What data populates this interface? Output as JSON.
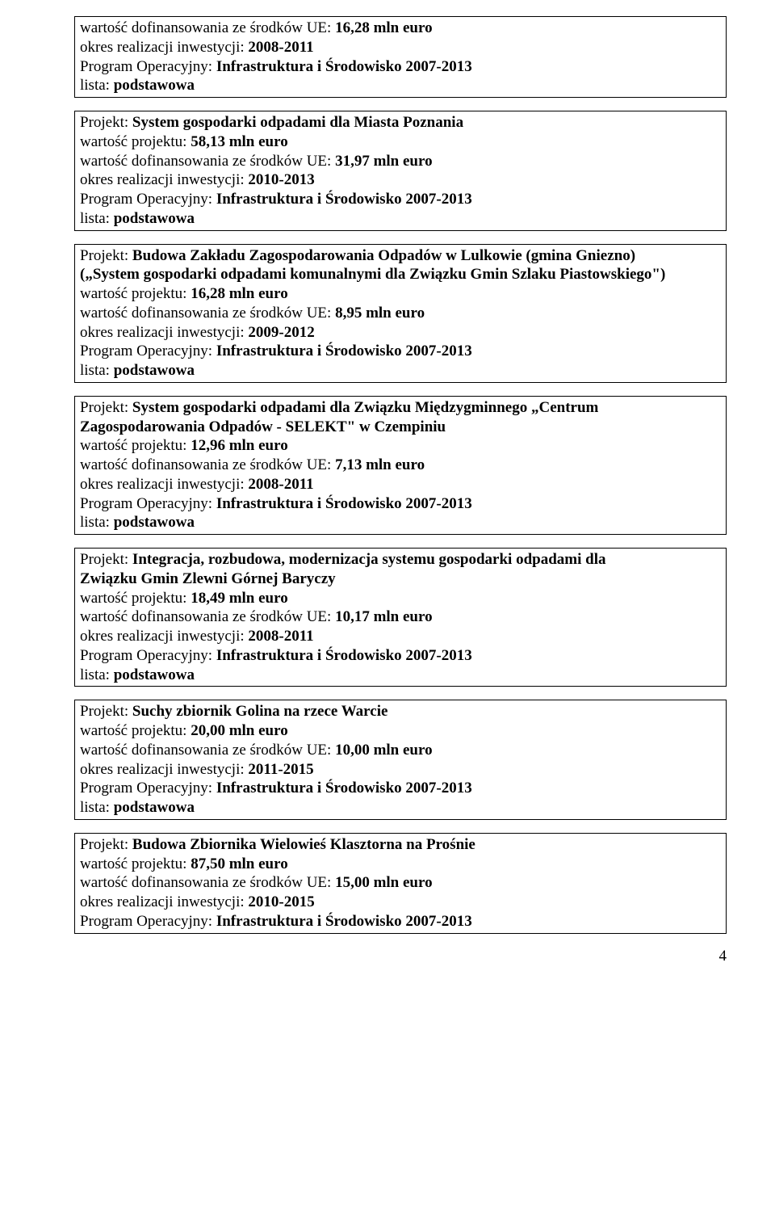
{
  "labels": {
    "funding_label": "wartość dofinansowania ze środków UE: ",
    "period_label": "okres realizacji inwestycji: ",
    "program_label": "Program Operacyjny: ",
    "list_label": "lista: ",
    "project_label": "Projekt: ",
    "value_label": "wartość projektu: "
  },
  "common": {
    "program": "Infrastruktura i Środowisko 2007-2013",
    "list": "podstawowa"
  },
  "box0": {
    "funding": "16,28 mln euro",
    "period": "2008-2011"
  },
  "box1": {
    "title": "System gospodarki odpadami dla Miasta Poznania",
    "value": "58,13 mln euro",
    "funding": "31,97 mln euro",
    "period": "2010-2013"
  },
  "box2": {
    "title_a": "Budowa Zakładu Zagospodarowania Odpadów w Lulkowie (gmina Gniezno)",
    "title_b": "(„System gospodarki odpadami komunalnymi dla Związku Gmin Szlaku Piastowskiego\")",
    "value": "16,28 mln euro",
    "funding": "8,95 mln euro",
    "period": "2009-2012"
  },
  "box3": {
    "title_a": "System gospodarki odpadami dla Związku Międzygminnego „Centrum",
    "title_b": "Zagospodarowania Odpadów - SELEKT\" w Czempiniu",
    "value": "12,96 mln euro",
    "funding": "7,13 mln euro",
    "period": "2008-2011"
  },
  "box4": {
    "title_a": "Integracja, rozbudowa, modernizacja systemu gospodarki odpadami dla",
    "title_b": "Związku Gmin Zlewni Górnej Baryczy",
    "value": "18,49 mln euro",
    "funding": "10,17 mln euro",
    "period": "2008-2011"
  },
  "box5": {
    "title": "Suchy zbiornik Golina na rzece Warcie",
    "value": "20,00 mln euro",
    "funding": "10,00 mln euro",
    "period": "2011-2015"
  },
  "box6": {
    "title": "Budowa Zbiornika Wielowieś Klasztorna na Prośnie",
    "value": "87,50 mln euro",
    "funding": "15,00 mln euro",
    "period": "2010-2015"
  },
  "page_number": "4"
}
